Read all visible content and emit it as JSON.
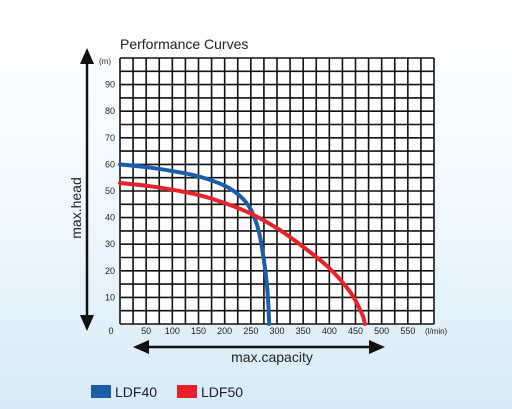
{
  "chart_data": {
    "type": "line",
    "title": "Performance Curves",
    "xlabel": "max.capacity",
    "ylabel": "max.head",
    "x_unit": "(l/min)",
    "y_unit": "(m)",
    "xlim": [
      0,
      600
    ],
    "ylim": [
      0,
      100
    ],
    "x_ticks": [
      0,
      50,
      100,
      150,
      200,
      250,
      300,
      350,
      400,
      450,
      500,
      550
    ],
    "y_ticks": [
      10,
      20,
      30,
      40,
      50,
      60,
      70,
      80,
      90
    ],
    "grid": true,
    "legend_position": "bottom-left",
    "series": [
      {
        "name": "LDF40",
        "color": "#1a5ea8",
        "points": [
          [
            0,
            60
          ],
          [
            50,
            59
          ],
          [
            100,
            57.5
          ],
          [
            150,
            55.5
          ],
          [
            200,
            52
          ],
          [
            230,
            48
          ],
          [
            250,
            43
          ],
          [
            265,
            35
          ],
          [
            275,
            24
          ],
          [
            282,
            12
          ],
          [
            285,
            0
          ]
        ]
      },
      {
        "name": "LDF50",
        "color": "#e52329",
        "points": [
          [
            0,
            53
          ],
          [
            50,
            52
          ],
          [
            100,
            50.5
          ],
          [
            150,
            48.5
          ],
          [
            200,
            45.5
          ],
          [
            250,
            41.5
          ],
          [
            300,
            36
          ],
          [
            350,
            29
          ],
          [
            400,
            21
          ],
          [
            440,
            12
          ],
          [
            462,
            4
          ],
          [
            468,
            0
          ]
        ]
      }
    ]
  }
}
